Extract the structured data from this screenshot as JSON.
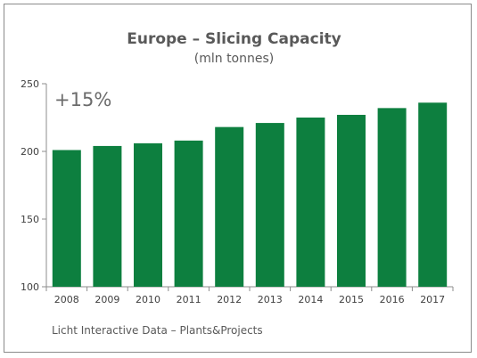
{
  "chart_data": {
    "type": "bar",
    "title": "Europe – Slicing Capacity",
    "subtitle": "(mln tonnes)",
    "annotation": "+15%",
    "source": "Licht Interactive Data – Plants&Projects",
    "categories": [
      "2008",
      "2009",
      "2010",
      "2011",
      "2012",
      "2013",
      "2014",
      "2015",
      "2016",
      "2017"
    ],
    "values": [
      201,
      204,
      206,
      208,
      218,
      221,
      225,
      227,
      232,
      236
    ],
    "ylim": [
      100,
      250
    ],
    "yticks": [
      100,
      150,
      200,
      250
    ],
    "xlabel": "",
    "ylabel": "",
    "grid": false,
    "legend": "none",
    "bar_color": "#0d7f3f",
    "axis_color": "#8c8c8c"
  }
}
